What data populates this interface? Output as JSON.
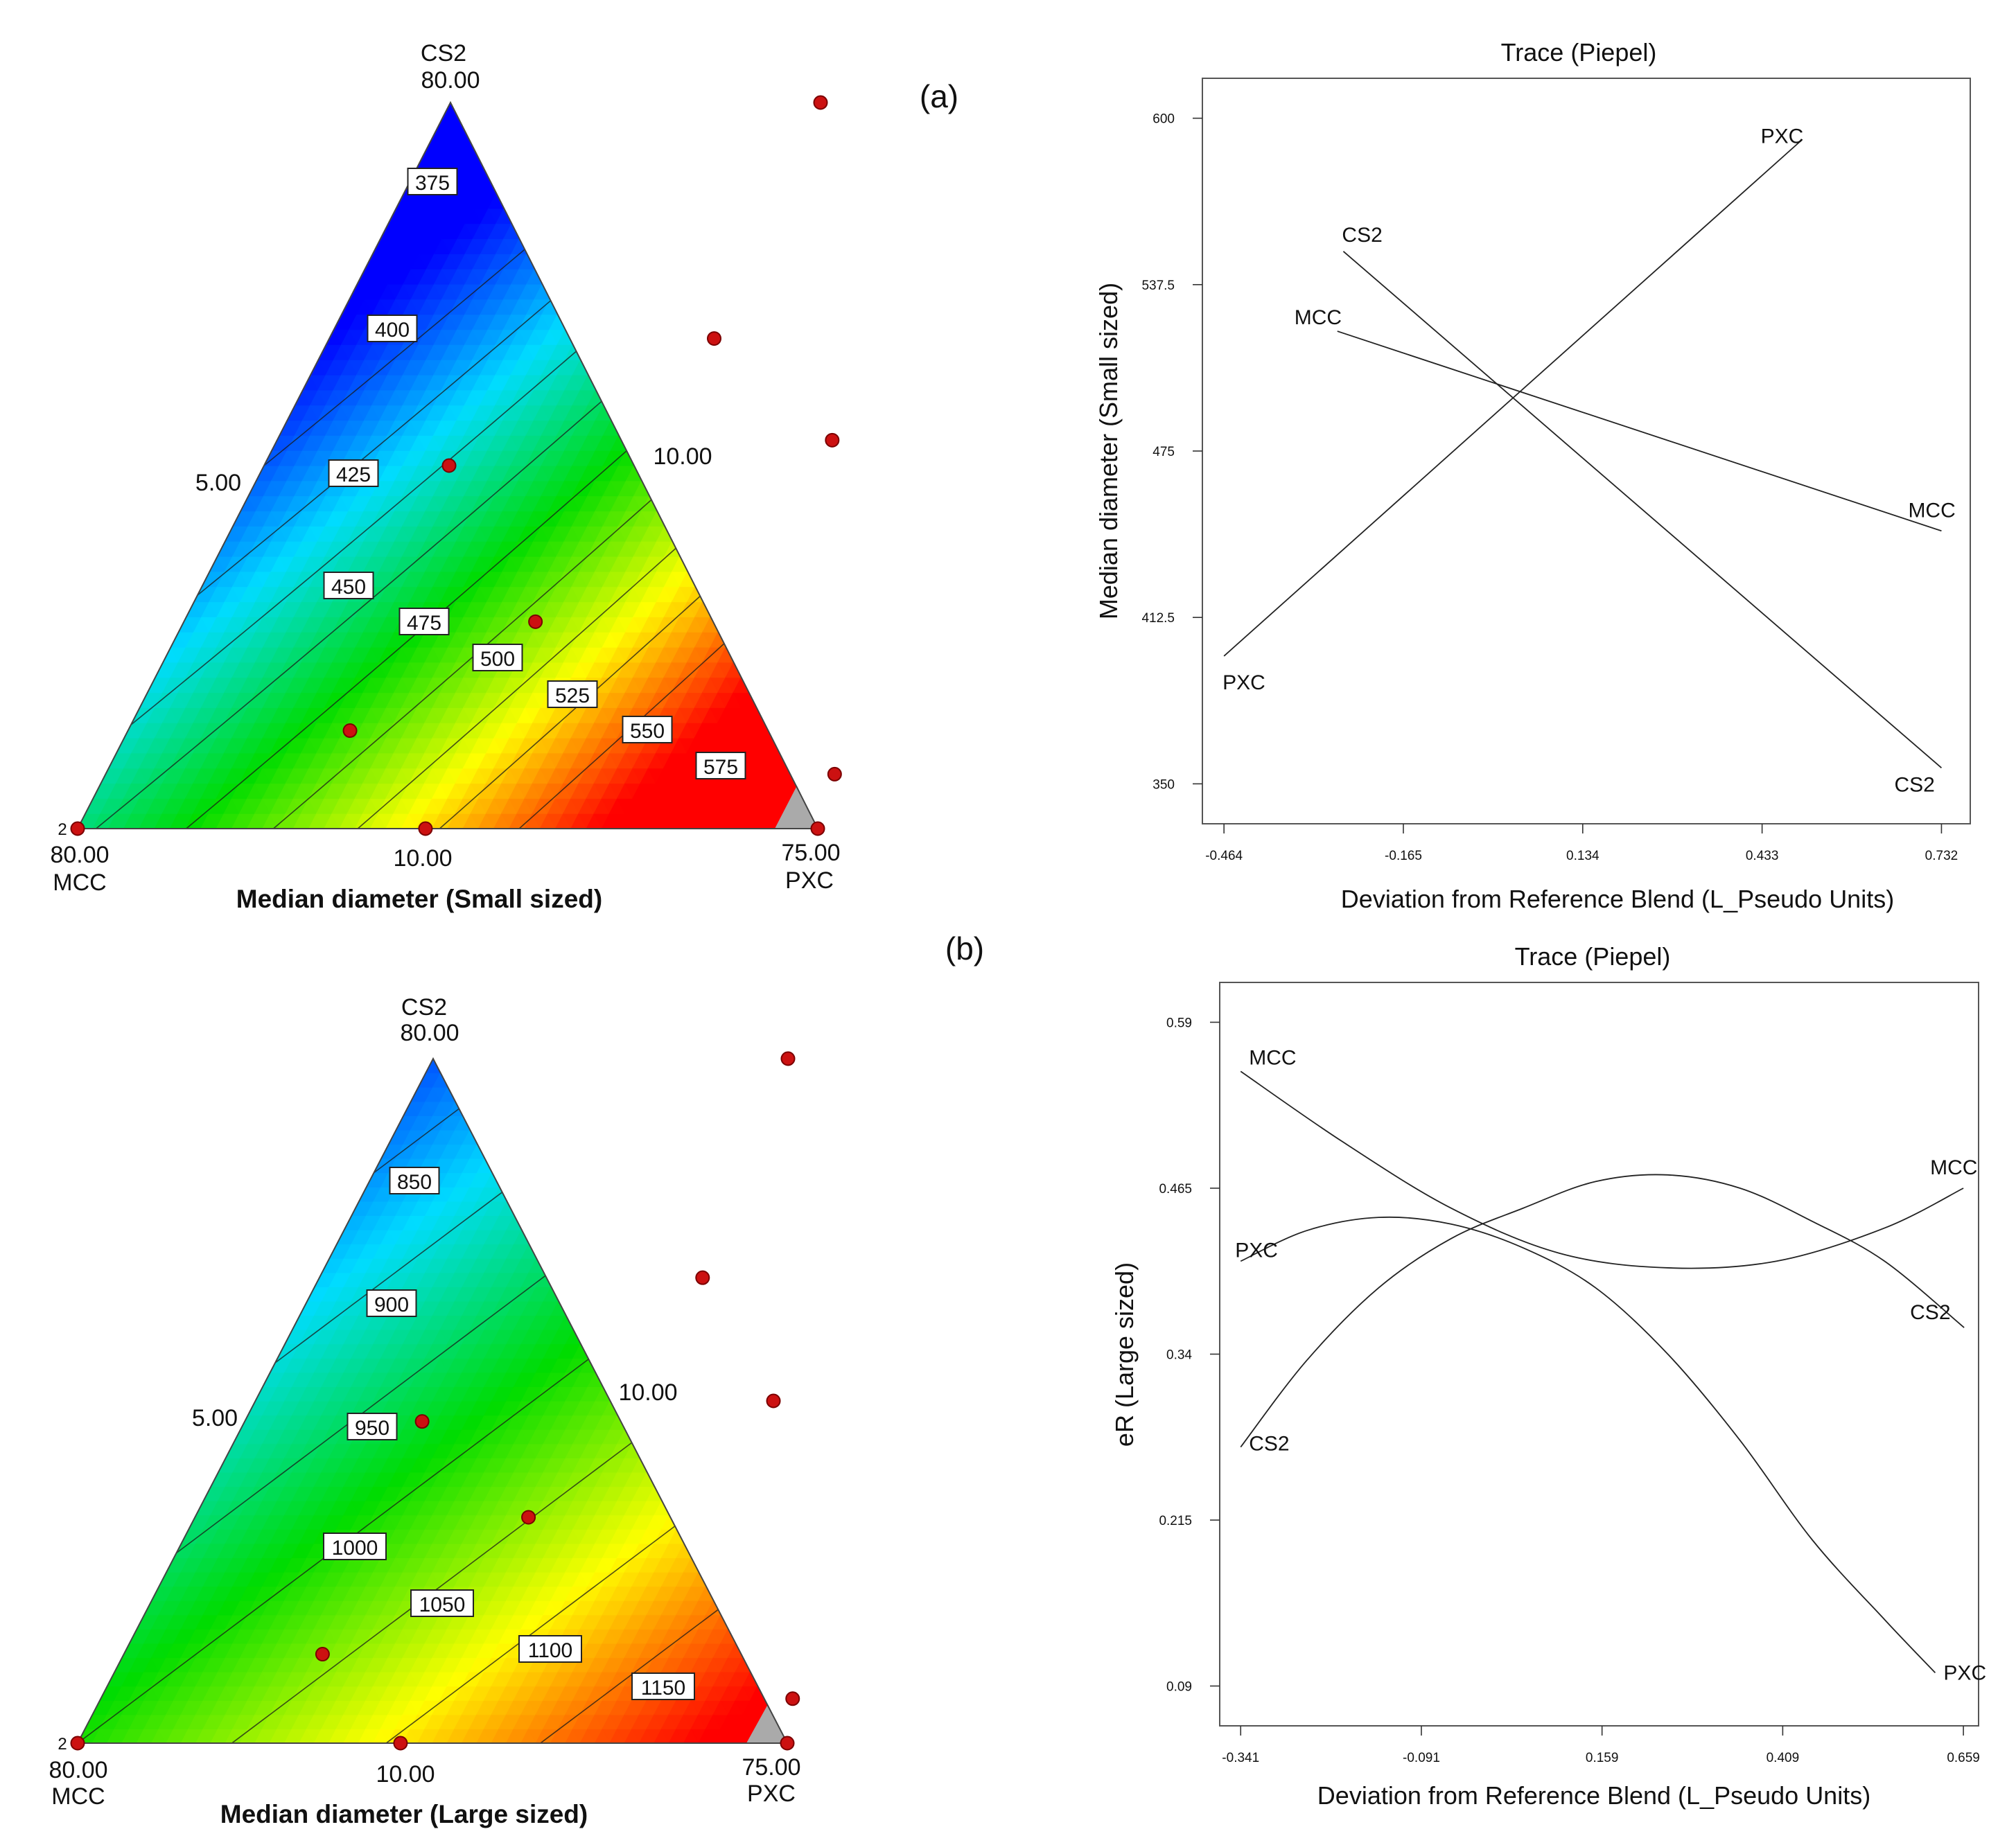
{
  "panel_labels": [
    "(a)",
    "(b)"
  ],
  "chart_data": [
    {
      "type": "ternary-contour",
      "title": "Median diameter (Small sized)",
      "vertices": {
        "top": {
          "name": "CS2",
          "value": "80.00"
        },
        "left": {
          "name": "MCC",
          "value": "80.00"
        },
        "right": {
          "name": "PXC",
          "value": "75.00"
        }
      },
      "edge_labels": {
        "left": "5.00",
        "right": "10.00",
        "bottom": "10.00"
      },
      "corner_replicate_label": "2",
      "contour_levels": [
        "375",
        "400",
        "425",
        "450",
        "475",
        "500",
        "525",
        "550",
        "575"
      ],
      "color_min": 350,
      "color_max": 600,
      "design_points": [
        [
          0.0,
          0.0
        ],
        [
          1.0,
          0.0
        ],
        [
          0.5,
          1.0
        ],
        [
          0.25,
          0.5
        ],
        [
          0.75,
          0.535
        ],
        [
          0.475,
          0.285
        ],
        [
          0.3,
          0.135
        ],
        [
          0.52,
          0.675
        ],
        [
          0.985,
          0.075
        ],
        [
          0.47,
          0.0
        ]
      ]
    },
    {
      "type": "ternary-contour",
      "title": "Median diameter (Large sized)",
      "vertices": {
        "top": {
          "name": "CS2",
          "value": "80.00"
        },
        "left": {
          "name": "MCC",
          "value": "80.00"
        },
        "right": {
          "name": "PXC",
          "value": "75.00"
        }
      },
      "edge_labels": {
        "left": "5.00",
        "right": "10.00",
        "bottom": "10.00"
      },
      "corner_replicate_label": "2",
      "contour_levels": [
        "850",
        "900",
        "950",
        "1000",
        "1050",
        "1100",
        "1150"
      ],
      "color_min": 780,
      "color_max": 1200,
      "design_points": [
        [
          0.0,
          0.0
        ],
        [
          1.0,
          0.0
        ],
        [
          0.5,
          1.0
        ],
        [
          0.25,
          0.47
        ],
        [
          0.73,
          0.5
        ],
        [
          0.47,
          0.33
        ],
        [
          0.28,
          0.13
        ],
        [
          0.54,
          0.68
        ],
        [
          0.975,
          0.065
        ],
        [
          0.455,
          0.0
        ]
      ]
    },
    {
      "type": "line",
      "title": "Trace (Piepel)",
      "xlabel": "Deviation from Reference Blend (L_Pseudo Units)",
      "ylabel": "Median diameter (Small sized)",
      "xlim": [
        -0.5,
        0.78
      ],
      "ylim": [
        335,
        615
      ],
      "xticks": [
        "-0.464",
        "-0.165",
        "0.134",
        "0.433",
        "0.732"
      ],
      "yticks": [
        "350",
        "412.5",
        "475",
        "537.5",
        "600"
      ],
      "series": [
        {
          "name": "PXC",
          "x": [
            -0.464,
            0.5
          ],
          "y": [
            398,
            592
          ],
          "start_label": "PXC",
          "end_label": "PXC"
        },
        {
          "name": "CS2",
          "x": [
            -0.265,
            0.732
          ],
          "y": [
            550,
            356
          ],
          "start_label": "CS2",
          "end_label": "CS2"
        },
        {
          "name": "MCC",
          "x": [
            -0.275,
            0.732
          ],
          "y": [
            520,
            445
          ],
          "start_label": "MCC",
          "end_label": "MCC"
        }
      ]
    },
    {
      "type": "line",
      "title": "Trace (Piepel)",
      "xlabel": "Deviation from Reference Blend (L_Pseudo Units)",
      "ylabel": "eR (Large sized)",
      "xlim": [
        -0.37,
        0.68
      ],
      "ylim": [
        0.06,
        0.62
      ],
      "xticks": [
        "-0.341",
        "-0.091",
        "0.159",
        "0.409",
        "0.659"
      ],
      "yticks": [
        "0.09",
        "0.215",
        "0.34",
        "0.465",
        "0.59"
      ],
      "series": [
        {
          "name": "MCC",
          "x": [
            -0.341,
            -0.2,
            -0.05,
            0.1,
            0.25,
            0.4,
            0.55,
            0.659
          ],
          "y": [
            0.553,
            0.5,
            0.45,
            0.416,
            0.405,
            0.41,
            0.435,
            0.465
          ],
          "start_label": "MCC",
          "end_label": "MCC"
        },
        {
          "name": "PXC",
          "x": [
            -0.341,
            -0.25,
            -0.15,
            -0.05,
            0.05,
            0.15,
            0.25,
            0.35,
            0.45,
            0.55,
            0.62
          ],
          "y": [
            0.41,
            0.433,
            0.443,
            0.438,
            0.42,
            0.39,
            0.34,
            0.275,
            0.2,
            0.14,
            0.1
          ],
          "start_label": "PXC",
          "end_label": "PXC"
        },
        {
          "name": "CS2",
          "x": [
            -0.341,
            -0.25,
            -0.15,
            -0.05,
            0.05,
            0.15,
            0.25,
            0.35,
            0.45,
            0.55,
            0.66
          ],
          "y": [
            0.27,
            0.335,
            0.39,
            0.427,
            0.45,
            0.47,
            0.475,
            0.465,
            0.44,
            0.41,
            0.36
          ],
          "start_label": "CS2",
          "end_label": "CS2"
        }
      ]
    }
  ]
}
